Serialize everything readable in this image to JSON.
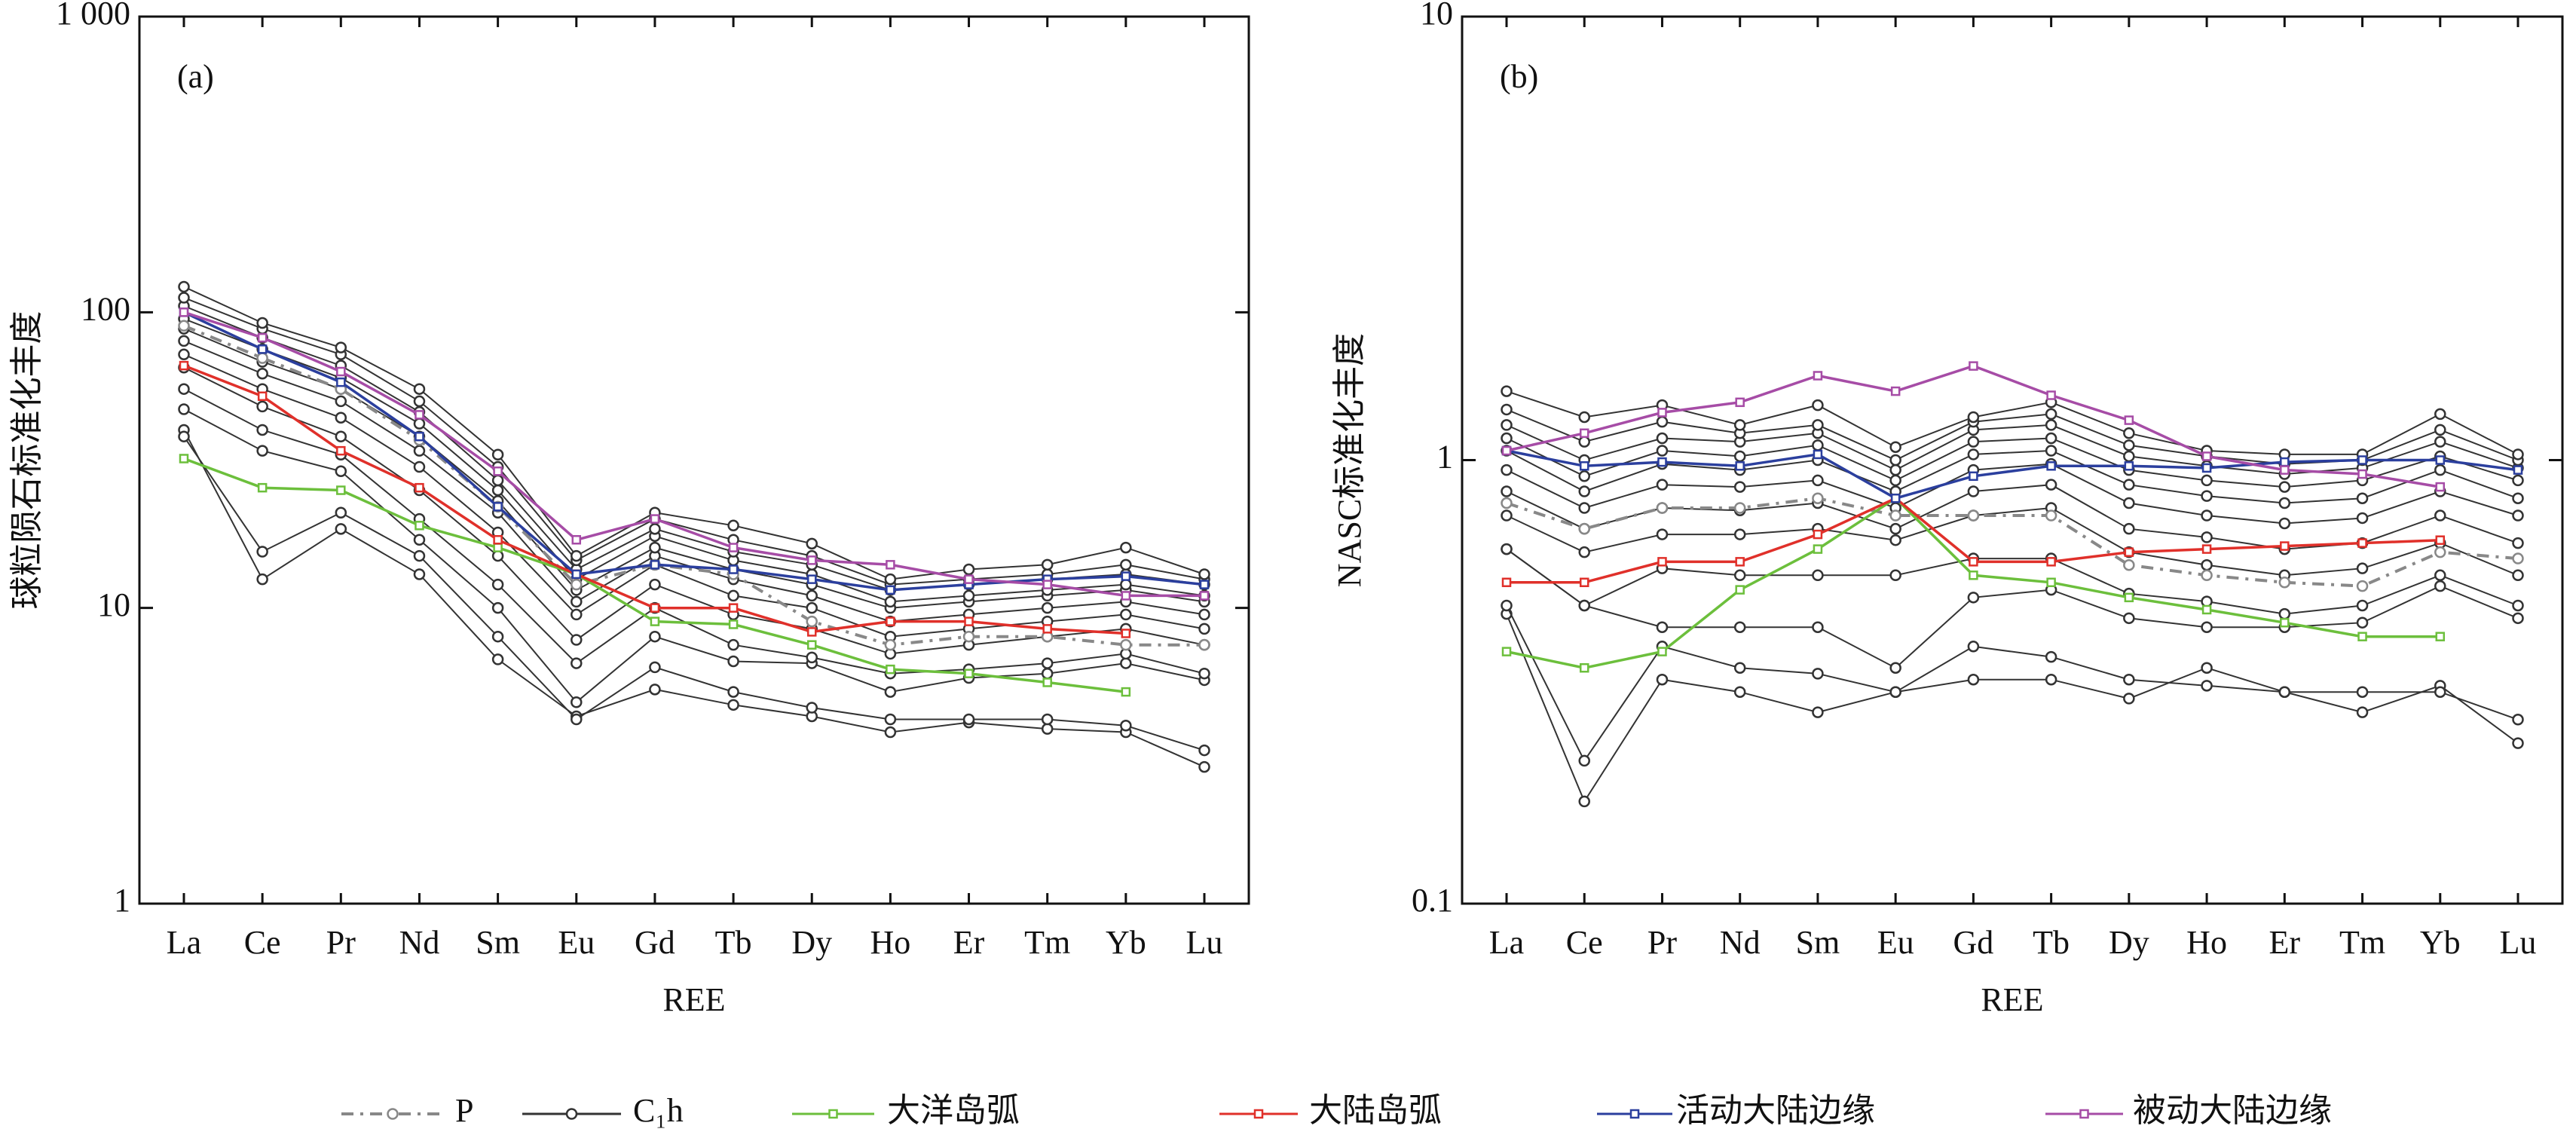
{
  "chart_data": [
    {
      "type": "line",
      "annotation": "(a)",
      "y_label": "球粒陨石标准化丰度",
      "x_label": "REE",
      "categories": [
        "La",
        "Ce",
        "Pr",
        "Nd",
        "Sm",
        "Eu",
        "Gd",
        "Tb",
        "Dy",
        "Ho",
        "Er",
        "Tm",
        "Yb",
        "Lu"
      ],
      "ylog": true,
      "ylim": [
        1,
        1000
      ],
      "yticks": [
        1,
        10,
        100,
        {
          "value": 1000,
          "label": "1 000"
        }
      ],
      "samples": {
        "name": "C₁h",
        "color": "#333333",
        "lines": [
          [
            40,
            12.5,
            18.5,
            13,
            6.7,
            4.3,
            5.3,
            4.7,
            4.3,
            3.8,
            4.1,
            3.9,
            3.8,
            2.9
          ],
          [
            38,
            15.5,
            21,
            15,
            8,
            4.2,
            6.3,
            5.2,
            4.6,
            4.2,
            4.2,
            4.2,
            4.0,
            3.3
          ],
          [
            47,
            34,
            29,
            17,
            10,
            4.8,
            8,
            6.6,
            6.5,
            5.2,
            5.8,
            6,
            6.5,
            5.7
          ],
          [
            55,
            40,
            33,
            20,
            12,
            6.5,
            10,
            7.5,
            6.8,
            6,
            6.2,
            6.5,
            7,
            6
          ],
          [
            65,
            48,
            38,
            25,
            15,
            7.8,
            12,
            9.5,
            8.5,
            7,
            7.5,
            8,
            8.5,
            7.5
          ],
          [
            72,
            55,
            44,
            30,
            18,
            9.5,
            14,
            11,
            10,
            8,
            8.5,
            9,
            9.5,
            8.5
          ],
          [
            80,
            62,
            50,
            34,
            21,
            10.5,
            15,
            12.5,
            11,
            9,
            9.5,
            10,
            10.5,
            9.5
          ],
          [
            88,
            68,
            55,
            38,
            23,
            11.5,
            16,
            13.5,
            12,
            10,
            10.5,
            11,
            11.5,
            10.5
          ],
          [
            95,
            75,
            60,
            42,
            25,
            12.5,
            17.5,
            14.5,
            13,
            10.5,
            11,
            11.5,
            12,
            11
          ],
          [
            105,
            82,
            66,
            46,
            27,
            13.5,
            18.5,
            15.5,
            14,
            11.5,
            12,
            12.5,
            13,
            12
          ],
          [
            112,
            88,
            72,
            50,
            30,
            14.5,
            20,
            17,
            15,
            12,
            12.5,
            13,
            14,
            12.5
          ],
          [
            122,
            92,
            76,
            55,
            33,
            15,
            21,
            19,
            16.5,
            12.5,
            13.5,
            14,
            16,
            13
          ]
        ]
      },
      "series": [
        {
          "name": "P",
          "color": "#888888",
          "style": "dashdot",
          "marker": "circle",
          "values": [
            90,
            70,
            55,
            37,
            22,
            12,
            14,
            13,
            9,
            7.5,
            8,
            8,
            7.5,
            7.5
          ]
        },
        {
          "name": "大洋岛弧",
          "color": "#6cbf3c",
          "style": "solid",
          "marker": "square",
          "values": [
            32,
            25.5,
            25,
            19,
            16,
            13,
            9,
            8.8,
            7.5,
            6.2,
            6,
            5.6,
            5.2,
            null
          ]
        },
        {
          "name": "大陆岛弧",
          "color": "#e0302a",
          "style": "solid",
          "marker": "square",
          "values": [
            66,
            52,
            34,
            25.5,
            17,
            13,
            10,
            10,
            8.3,
            9,
            9,
            8.5,
            8.2,
            null
          ]
        },
        {
          "name": "活动大陆边缘",
          "color": "#2b3f9e",
          "style": "solid",
          "marker": "square",
          "values": [
            100,
            75,
            58,
            38,
            22,
            13,
            14,
            13.5,
            12.5,
            11.5,
            12,
            12.5,
            12.8,
            12
          ]
        },
        {
          "name": "被动大陆边缘",
          "color": "#a64ca6",
          "style": "solid",
          "marker": "square",
          "values": [
            100,
            82,
            63,
            45,
            29,
            17,
            20,
            16,
            14.5,
            14,
            12.5,
            12,
            11,
            11
          ]
        }
      ]
    },
    {
      "type": "line",
      "annotation": "(b)",
      "y_label": "NASC标准化丰度",
      "x_label": "REE",
      "categories": [
        "La",
        "Ce",
        "Pr",
        "Nd",
        "Sm",
        "Eu",
        "Gd",
        "Tb",
        "Dy",
        "Ho",
        "Er",
        "Tm",
        "Yb",
        "Lu"
      ],
      "ylog": true,
      "ylim": [
        0.1,
        10
      ],
      "yticks": [
        0.1,
        1,
        10
      ],
      "samples": {
        "color": "#333333",
        "lines": [
          [
            0.45,
            0.17,
            0.32,
            0.3,
            0.27,
            0.3,
            0.32,
            0.32,
            0.29,
            0.34,
            0.3,
            0.27,
            0.31,
            0.23
          ],
          [
            0.47,
            0.21,
            0.38,
            0.34,
            0.33,
            0.3,
            0.38,
            0.36,
            0.32,
            0.31,
            0.3,
            0.3,
            0.3,
            0.26
          ],
          [
            0.63,
            0.47,
            0.42,
            0.42,
            0.42,
            0.34,
            0.49,
            0.51,
            0.44,
            0.42,
            0.42,
            0.43,
            0.52,
            0.44
          ],
          [
            0.63,
            0.47,
            0.57,
            0.55,
            0.55,
            0.55,
            0.6,
            0.6,
            0.5,
            0.48,
            0.45,
            0.47,
            0.55,
            0.47
          ],
          [
            0.75,
            0.62,
            0.68,
            0.68,
            0.7,
            0.66,
            0.75,
            0.78,
            0.62,
            0.58,
            0.55,
            0.57,
            0.65,
            0.55
          ],
          [
            0.85,
            0.7,
            0.78,
            0.77,
            0.8,
            0.7,
            0.85,
            0.88,
            0.7,
            0.67,
            0.63,
            0.65,
            0.75,
            0.65
          ],
          [
            0.95,
            0.78,
            0.88,
            0.87,
            0.9,
            0.78,
            0.95,
            0.98,
            0.8,
            0.75,
            0.72,
            0.74,
            0.85,
            0.75
          ],
          [
            1.05,
            0.85,
            0.98,
            0.95,
            1.0,
            0.85,
            1.03,
            1.05,
            0.88,
            0.83,
            0.8,
            0.82,
            0.95,
            0.82
          ],
          [
            1.12,
            0.92,
            1.05,
            1.02,
            1.08,
            0.9,
            1.1,
            1.12,
            0.95,
            0.9,
            0.87,
            0.9,
            1.02,
            0.9
          ],
          [
            1.2,
            1.0,
            1.12,
            1.1,
            1.15,
            0.95,
            1.17,
            1.2,
            1.02,
            0.97,
            0.93,
            0.96,
            1.1,
            0.96
          ],
          [
            1.3,
            1.1,
            1.22,
            1.15,
            1.2,
            1.0,
            1.22,
            1.27,
            1.08,
            1.02,
            0.98,
            1.0,
            1.17,
            1.0
          ],
          [
            1.43,
            1.25,
            1.33,
            1.2,
            1.33,
            1.07,
            1.25,
            1.35,
            1.15,
            1.05,
            1.03,
            1.03,
            1.27,
            1.03
          ]
        ]
      },
      "series": [
        {
          "color": "#888888",
          "style": "dashdot",
          "marker": "circle",
          "values": [
            0.8,
            0.7,
            0.78,
            0.78,
            0.82,
            0.75,
            0.75,
            0.75,
            0.58,
            0.55,
            0.53,
            0.52,
            0.62,
            0.6
          ]
        },
        {
          "color": "#6cbf3c",
          "style": "solid",
          "marker": "square",
          "values": [
            0.37,
            0.34,
            0.37,
            0.51,
            0.63,
            0.82,
            0.55,
            0.53,
            0.49,
            0.46,
            0.43,
            0.4,
            0.4,
            null
          ]
        },
        {
          "color": "#e0302a",
          "style": "solid",
          "marker": "square",
          "values": [
            0.53,
            0.53,
            0.59,
            0.59,
            0.68,
            0.82,
            0.59,
            0.59,
            0.62,
            0.63,
            0.64,
            0.65,
            0.66,
            null
          ]
        },
        {
          "color": "#2b3f9e",
          "style": "solid",
          "marker": "square",
          "values": [
            1.05,
            0.97,
            0.99,
            0.97,
            1.03,
            0.82,
            0.92,
            0.97,
            0.97,
            0.96,
            0.99,
            1.0,
            1.0,
            0.95
          ]
        },
        {
          "color": "#a64ca6",
          "style": "solid",
          "marker": "square",
          "values": [
            1.05,
            1.15,
            1.28,
            1.35,
            1.55,
            1.43,
            1.63,
            1.4,
            1.23,
            1.02,
            0.95,
            0.93,
            0.87,
            null
          ]
        }
      ]
    }
  ]
}
